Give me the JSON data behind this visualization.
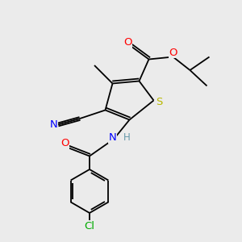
{
  "bg_color": "#ebebeb",
  "bond_color": "#000000",
  "atom_colors": {
    "O": "#ff0000",
    "S": "#b8b800",
    "N": "#0000ff",
    "Cl": "#00aa00",
    "CN_N": "#0000ff",
    "H": "#6699aa"
  },
  "figsize": [
    3.0,
    3.0
  ],
  "dpi": 100,
  "lw": 1.3,
  "fs": 8.5
}
